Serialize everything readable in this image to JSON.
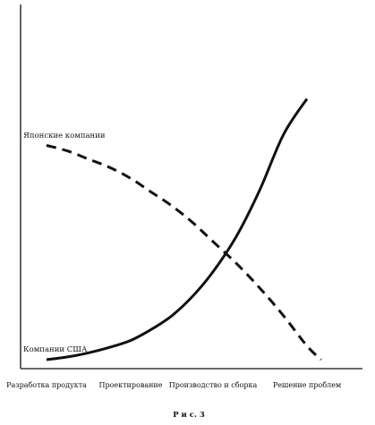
{
  "chart_data": {
    "type": "line",
    "categories": [
      "Разработка продукта",
      "Проектирование",
      "Производство и сборка",
      "Решение проблем"
    ],
    "series": [
      {
        "name": "Японские компании",
        "style": "dashed",
        "color": "#111111",
        "points": [
          [
            0,
            78
          ],
          [
            0.25,
            76
          ],
          [
            0.5,
            73
          ],
          [
            0.75,
            70
          ],
          [
            1,
            66
          ],
          [
            1.25,
            61
          ],
          [
            1.5,
            56
          ],
          [
            1.75,
            50
          ],
          [
            2,
            43
          ],
          [
            2.25,
            35
          ],
          [
            2.5,
            26
          ],
          [
            2.75,
            16
          ],
          [
            3,
            5
          ],
          [
            3.15,
            0
          ]
        ]
      },
      {
        "name": "Компании США",
        "style": "solid",
        "color": "#111111",
        "points": [
          [
            0,
            0
          ],
          [
            0.25,
            1
          ],
          [
            0.5,
            2.5
          ],
          [
            0.75,
            4.5
          ],
          [
            1,
            7
          ],
          [
            1.25,
            11
          ],
          [
            1.5,
            16
          ],
          [
            1.75,
            23
          ],
          [
            2,
            32
          ],
          [
            2.25,
            45
          ],
          [
            2.5,
            62
          ],
          [
            2.75,
            82
          ],
          [
            3,
            95
          ]
        ]
      }
    ],
    "xlim": [
      -0.1,
      3.45
    ],
    "ylim": [
      0,
      100
    ],
    "grid": false,
    "caption": "Р и с.   3"
  }
}
